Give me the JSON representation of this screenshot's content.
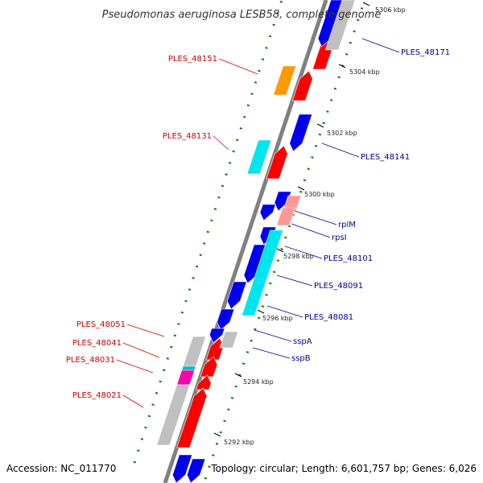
{
  "title": "Pseudomonas aeruginosa LESB58, complete genome",
  "footer": {
    "accession": "Accession: NC_011770",
    "topology": "Topology: circular; Length: 6,601,757 bp; Genes: 6,026"
  },
  "colors": {
    "backbone": "#808080",
    "gc_dots": "#008000",
    "red": "#ff0000",
    "blue": "#0000ee",
    "cyan": "#00e5ee",
    "grey": "#c0c0c0",
    "orange": "#ff9900",
    "pink": "#ff9999",
    "teal": "#00c0c0",
    "magenta": "#ff00aa",
    "label_left": "#cc0000",
    "label_right": "#000099"
  },
  "ticks": [
    {
      "label": "5292 kbp"
    },
    {
      "label": "5294 kbp"
    },
    {
      "label": "5296 kbp"
    },
    {
      "label": "5298 kbp"
    },
    {
      "label": "5300 kbp"
    },
    {
      "label": "5302 kbp"
    },
    {
      "label": "5304 kbp"
    },
    {
      "label": "5306 kbp"
    }
  ],
  "labels_left": [
    {
      "text": "PLES_48151"
    },
    {
      "text": "PLES_48131"
    },
    {
      "text": "PLES_48051"
    },
    {
      "text": "PLES_48041"
    },
    {
      "text": "PLES_48031"
    },
    {
      "text": "PLES_48021"
    }
  ],
  "labels_right": [
    {
      "text": "PLES_48171"
    },
    {
      "text": "PLES_48141"
    },
    {
      "text": "rplM"
    },
    {
      "text": "rpsI"
    },
    {
      "text": "PLES_48101"
    },
    {
      "text": "PLES_48091"
    },
    {
      "text": "PLES_48081"
    },
    {
      "text": "sspA"
    },
    {
      "text": "sspB"
    }
  ]
}
